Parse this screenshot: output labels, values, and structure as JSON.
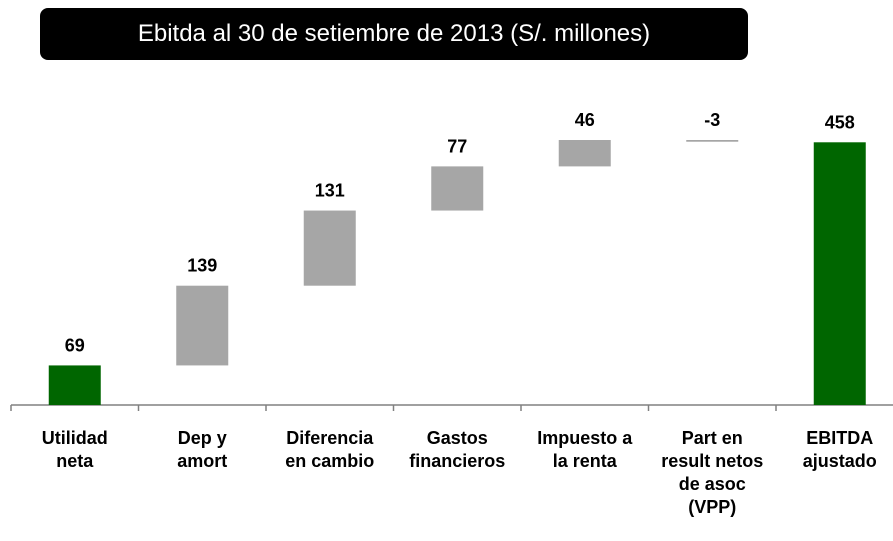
{
  "chart_data": {
    "type": "waterfall",
    "title": "Ebitda al 30 de setiembre de 2013 (S/. millones)",
    "categories": [
      "Utilidad\nneta",
      "Dep y\namort",
      "Diferencia\nen cambio",
      "Gastos\nfinancieros",
      "Impuesto a\nla renta",
      "Part en\nresult netos\nde asoc\n(VPP)",
      "EBITDA\najustado"
    ],
    "values": [
      69,
      139,
      131,
      77,
      46,
      -3,
      458
    ],
    "colors": [
      "#006600",
      "#a6a6a6",
      "#a6a6a6",
      "#a6a6a6",
      "#a6a6a6",
      "#a6a6a6",
      "#006600"
    ],
    "totals": [
      false,
      false,
      false,
      false,
      false,
      false,
      true
    ]
  }
}
